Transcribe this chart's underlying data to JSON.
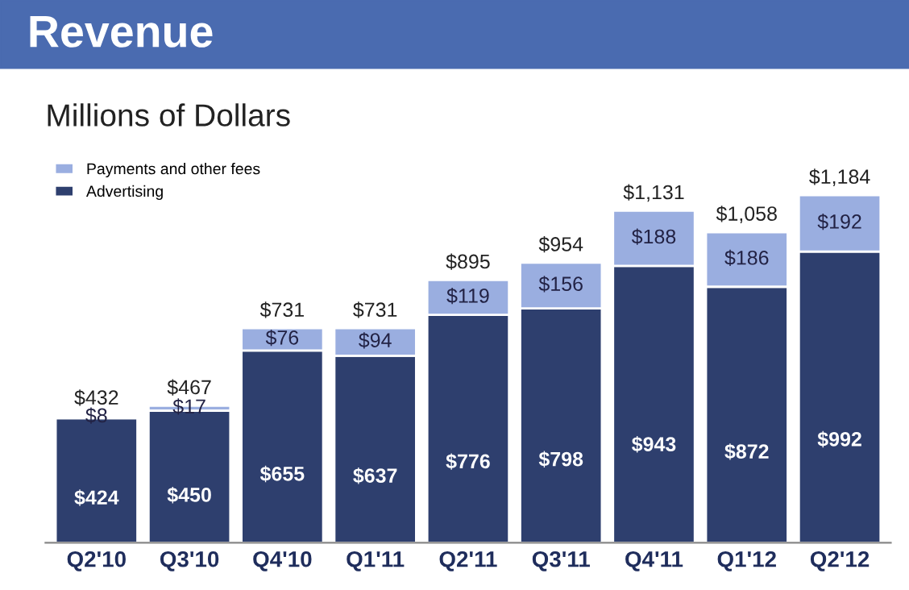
{
  "chart_data": {
    "type": "bar",
    "title": "Revenue",
    "subtitle": "Millions of Dollars",
    "categories": [
      "Q2'10",
      "Q3'10",
      "Q4'10",
      "Q1'11",
      "Q2'11",
      "Q3'11",
      "Q4'11",
      "Q1'12",
      "Q2'12"
    ],
    "stacked": true,
    "legend": "top left",
    "series": [
      {
        "name": "Advertising",
        "color": "#2e3f6e",
        "values": [
          424,
          450,
          655,
          637,
          776,
          798,
          943,
          872,
          992
        ],
        "value_labels": [
          "$424",
          "$450",
          "$655",
          "$637",
          "$776",
          "$798",
          "$943",
          "$872",
          "$992"
        ]
      },
      {
        "name": "Payments and other fees",
        "color": "#9aaee0",
        "values": [
          8,
          17,
          76,
          94,
          119,
          156,
          188,
          186,
          192
        ],
        "value_labels": [
          "$8",
          "$17",
          "$76",
          "$94",
          "$119",
          "$156",
          "$188",
          "$186",
          "$192"
        ]
      }
    ],
    "totals": [
      "$432",
      "$467",
      "$731",
      "$731",
      "$895",
      "$954",
      "$1,131",
      "$1,058",
      "$1,184"
    ]
  }
}
